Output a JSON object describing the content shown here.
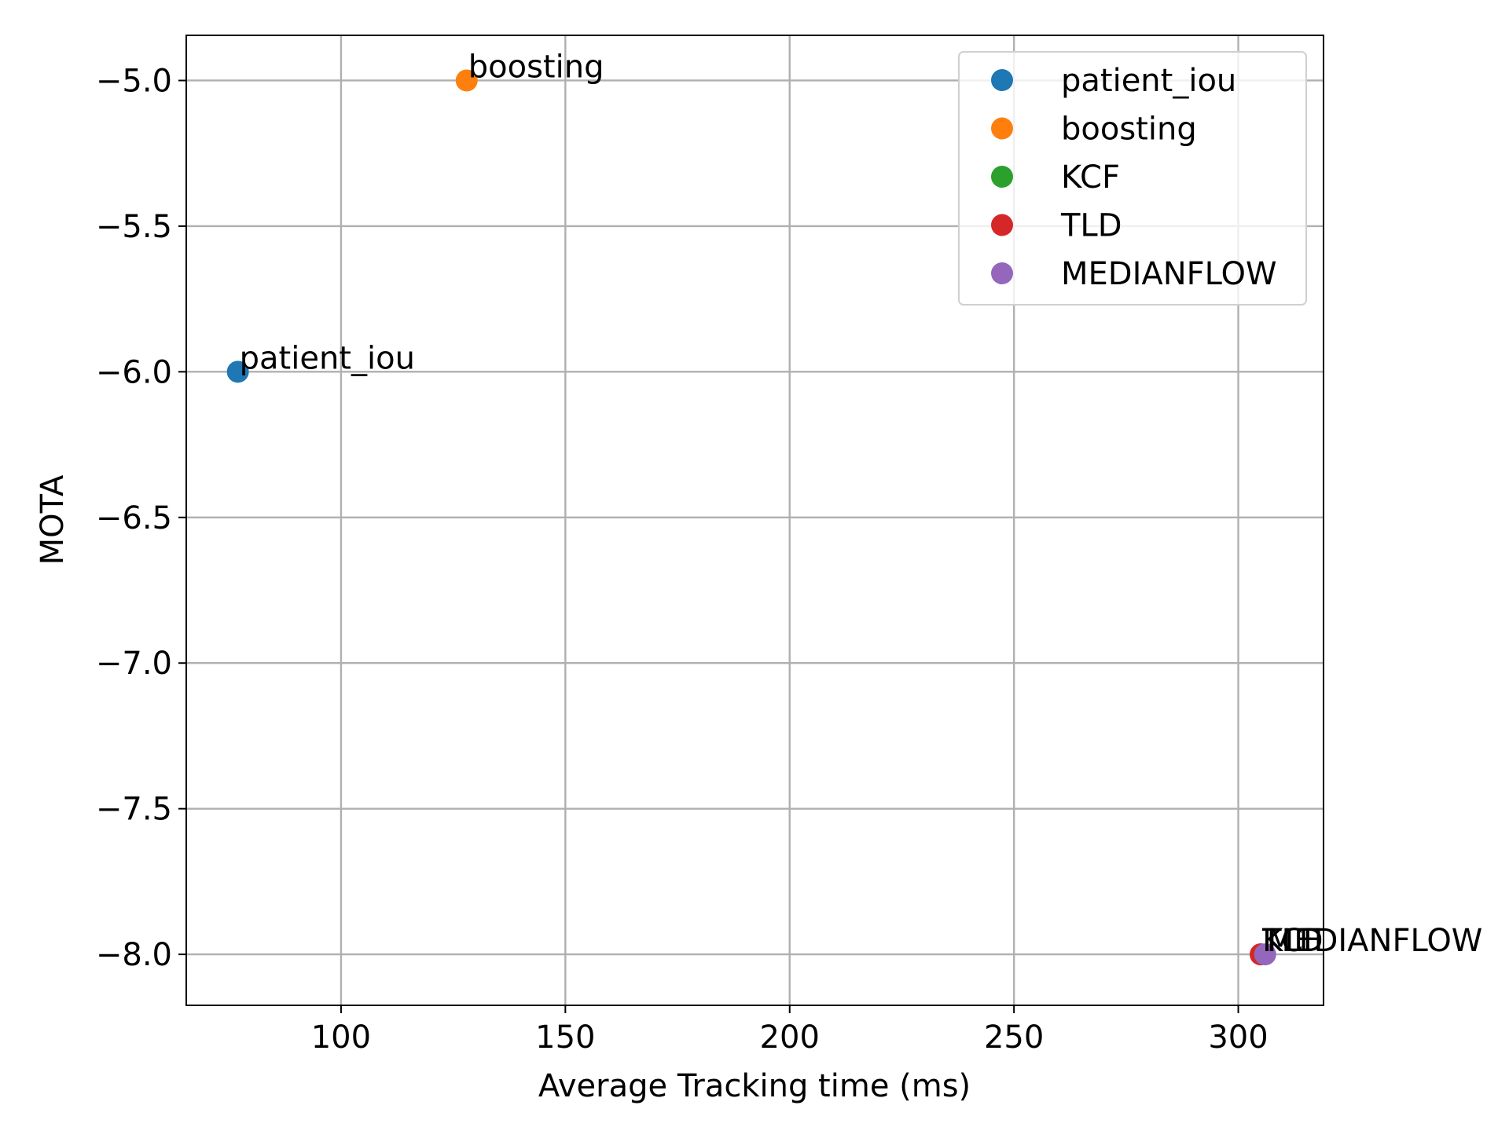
{
  "chart_data": {
    "type": "scatter",
    "title": "",
    "xlabel": "Average Tracking time (ms)",
    "ylabel": "MOTA",
    "xlim": [
      65.5,
      319
    ],
    "ylim": [
      -8.175,
      -4.845
    ],
    "xticks": [
      100,
      150,
      200,
      250,
      300
    ],
    "yticks": [
      -5.0,
      -5.5,
      -6.0,
      -6.5,
      -7.0,
      -7.5,
      -8.0
    ],
    "xtick_labels": [
      "100",
      "150",
      "200",
      "250",
      "300"
    ],
    "ytick_labels": [
      "−5.0",
      "−5.5",
      "−6.0",
      "−6.5",
      "−7.0",
      "−7.5",
      "−8.0"
    ],
    "grid": true,
    "legend_position": "top-right",
    "series": [
      {
        "name": "patient_iou",
        "label": "patient_iou",
        "color": "#1f77b4",
        "x": 77,
        "y": -6.0
      },
      {
        "name": "boosting",
        "label": "boosting",
        "color": "#ff7f0e",
        "x": 128,
        "y": -5.0
      },
      {
        "name": "KCF",
        "label": "KCF",
        "color": "#2ca02c",
        "x": 305,
        "y": -8.0
      },
      {
        "name": "TLD",
        "label": "TLD",
        "color": "#d62728",
        "x": 305,
        "y": -8.0
      },
      {
        "name": "MEDIANFLOW",
        "label": "MEDIANFLOW",
        "color": "#9467bd",
        "x": 306,
        "y": -8.0
      }
    ]
  }
}
